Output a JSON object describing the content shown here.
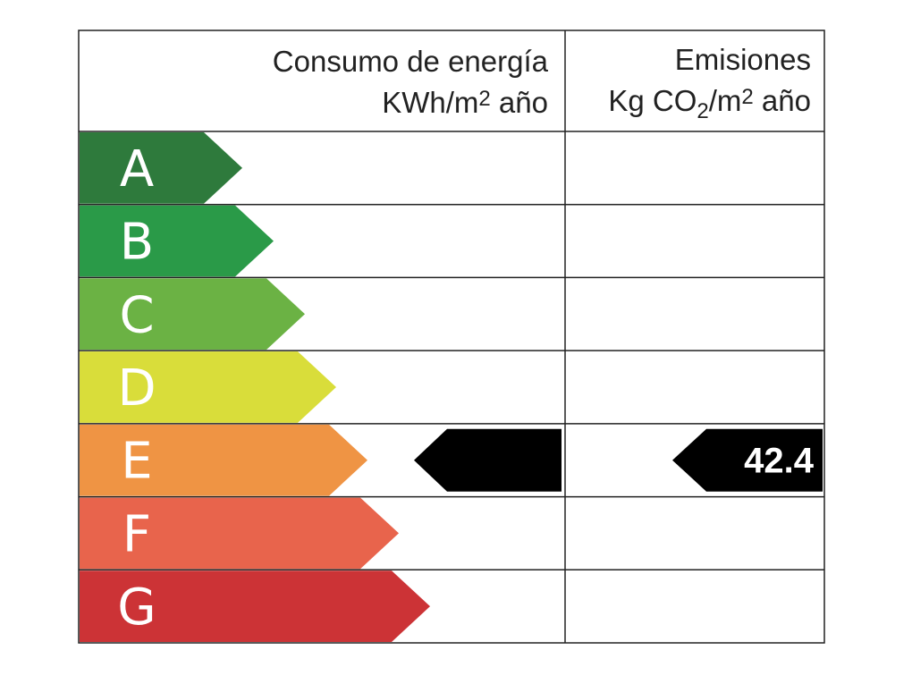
{
  "header": {
    "consumption": {
      "title": "Consumo de energía",
      "unit": [
        "KWh/m",
        "2",
        " año"
      ]
    },
    "emissions": {
      "title": "Emisiones",
      "unit": [
        "Kg CO",
        "2",
        "/m",
        "2",
        " año"
      ]
    }
  },
  "grades": [
    {
      "letter": "A",
      "color": "#2e7a3c"
    },
    {
      "letter": "B",
      "color": "#2a9a48"
    },
    {
      "letter": "C",
      "color": "#6bb244"
    },
    {
      "letter": "D",
      "color": "#d9dd3a"
    },
    {
      "letter": "E",
      "color": "#ef9444"
    },
    {
      "letter": "F",
      "color": "#e8644c"
    },
    {
      "letter": "G",
      "color": "#cc3336"
    }
  ],
  "consumption_rating": "E",
  "emissions_rating": "E",
  "emissions_value": 42.4
}
